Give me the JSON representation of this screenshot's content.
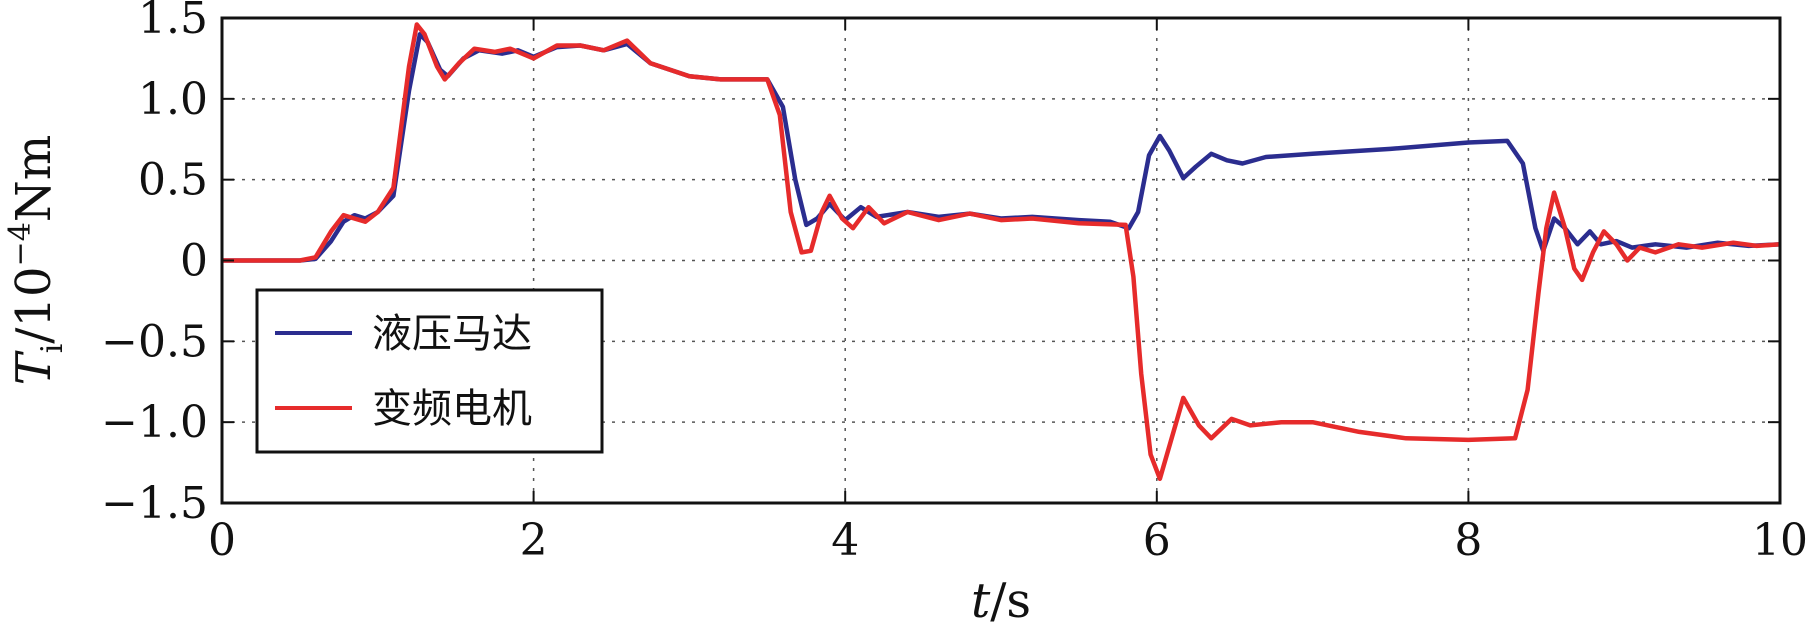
{
  "chart_data": {
    "type": "line",
    "xlabel": {
      "italic": "t",
      "rest": "/s"
    },
    "ylabel": {
      "italic": "T",
      "sub": "i",
      "rest": "/10",
      "sup": "−4",
      "unit": "Nm"
    },
    "xlim": [
      0,
      10
    ],
    "ylim": [
      -1.5,
      1.5
    ],
    "xticks": [
      0,
      2,
      4,
      6,
      8,
      10
    ],
    "xtick_labels": [
      "0",
      "2",
      "4",
      "6",
      "8",
      "10"
    ],
    "yticks": [
      1.5,
      1.0,
      0.5,
      0,
      -0.5,
      -1.0,
      -1.5
    ],
    "ytick_labels": [
      "1.5",
      "1.0",
      "0.5",
      "0",
      "−0.5",
      "−1.0",
      "−1.5"
    ],
    "grid": true,
    "legend_position": "lower-left",
    "series": [
      {
        "name": "液压马达",
        "color": "#2b2d8f",
        "points": [
          [
            0,
            0
          ],
          [
            0.5,
            0
          ],
          [
            0.6,
            0.01
          ],
          [
            0.7,
            0.12
          ],
          [
            0.78,
            0.24
          ],
          [
            0.85,
            0.28
          ],
          [
            0.92,
            0.26
          ],
          [
            1.0,
            0.3
          ],
          [
            1.1,
            0.4
          ],
          [
            1.2,
            1.05
          ],
          [
            1.27,
            1.4
          ],
          [
            1.32,
            1.35
          ],
          [
            1.4,
            1.18
          ],
          [
            1.45,
            1.14
          ],
          [
            1.55,
            1.25
          ],
          [
            1.65,
            1.3
          ],
          [
            1.8,
            1.28
          ],
          [
            1.9,
            1.3
          ],
          [
            2.0,
            1.26
          ],
          [
            2.15,
            1.32
          ],
          [
            2.3,
            1.33
          ],
          [
            2.45,
            1.3
          ],
          [
            2.6,
            1.34
          ],
          [
            2.75,
            1.22
          ],
          [
            3.0,
            1.14
          ],
          [
            3.2,
            1.12
          ],
          [
            3.5,
            1.12
          ],
          [
            3.6,
            0.95
          ],
          [
            3.68,
            0.5
          ],
          [
            3.75,
            0.22
          ],
          [
            3.82,
            0.26
          ],
          [
            3.9,
            0.35
          ],
          [
            4.0,
            0.25
          ],
          [
            4.1,
            0.33
          ],
          [
            4.2,
            0.27
          ],
          [
            4.4,
            0.3
          ],
          [
            4.6,
            0.27
          ],
          [
            4.8,
            0.29
          ],
          [
            5.0,
            0.26
          ],
          [
            5.2,
            0.27
          ],
          [
            5.5,
            0.25
          ],
          [
            5.7,
            0.24
          ],
          [
            5.82,
            0.2
          ],
          [
            5.88,
            0.3
          ],
          [
            5.95,
            0.65
          ],
          [
            6.02,
            0.77
          ],
          [
            6.08,
            0.68
          ],
          [
            6.17,
            0.51
          ],
          [
            6.25,
            0.58
          ],
          [
            6.35,
            0.66
          ],
          [
            6.45,
            0.62
          ],
          [
            6.55,
            0.6
          ],
          [
            6.7,
            0.64
          ],
          [
            7.0,
            0.66
          ],
          [
            7.5,
            0.69
          ],
          [
            8.0,
            0.73
          ],
          [
            8.25,
            0.74
          ],
          [
            8.35,
            0.6
          ],
          [
            8.43,
            0.2
          ],
          [
            8.48,
            0.06
          ],
          [
            8.55,
            0.26
          ],
          [
            8.62,
            0.2
          ],
          [
            8.7,
            0.1
          ],
          [
            8.78,
            0.18
          ],
          [
            8.85,
            0.1
          ],
          [
            8.95,
            0.12
          ],
          [
            9.05,
            0.08
          ],
          [
            9.2,
            0.1
          ],
          [
            9.4,
            0.08
          ],
          [
            9.6,
            0.11
          ],
          [
            9.8,
            0.09
          ],
          [
            10.0,
            0.1
          ]
        ]
      },
      {
        "name": "变频电机",
        "color": "#e62b2b",
        "points": [
          [
            0,
            0
          ],
          [
            0.5,
            0
          ],
          [
            0.6,
            0.02
          ],
          [
            0.7,
            0.18
          ],
          [
            0.78,
            0.28
          ],
          [
            0.85,
            0.26
          ],
          [
            0.92,
            0.24
          ],
          [
            1.0,
            0.3
          ],
          [
            1.1,
            0.45
          ],
          [
            1.2,
            1.2
          ],
          [
            1.25,
            1.46
          ],
          [
            1.3,
            1.4
          ],
          [
            1.38,
            1.2
          ],
          [
            1.43,
            1.12
          ],
          [
            1.52,
            1.22
          ],
          [
            1.62,
            1.31
          ],
          [
            1.75,
            1.29
          ],
          [
            1.85,
            1.31
          ],
          [
            2.0,
            1.25
          ],
          [
            2.15,
            1.33
          ],
          [
            2.3,
            1.33
          ],
          [
            2.45,
            1.3
          ],
          [
            2.6,
            1.36
          ],
          [
            2.75,
            1.22
          ],
          [
            3.0,
            1.14
          ],
          [
            3.2,
            1.12
          ],
          [
            3.5,
            1.12
          ],
          [
            3.58,
            0.9
          ],
          [
            3.65,
            0.3
          ],
          [
            3.72,
            0.05
          ],
          [
            3.78,
            0.06
          ],
          [
            3.85,
            0.3
          ],
          [
            3.9,
            0.4
          ],
          [
            3.98,
            0.26
          ],
          [
            4.05,
            0.2
          ],
          [
            4.15,
            0.33
          ],
          [
            4.25,
            0.23
          ],
          [
            4.4,
            0.3
          ],
          [
            4.6,
            0.25
          ],
          [
            4.8,
            0.29
          ],
          [
            5.0,
            0.25
          ],
          [
            5.2,
            0.26
          ],
          [
            5.5,
            0.23
          ],
          [
            5.8,
            0.22
          ],
          [
            5.85,
            -0.1
          ],
          [
            5.9,
            -0.7
          ],
          [
            5.96,
            -1.2
          ],
          [
            6.02,
            -1.35
          ],
          [
            6.08,
            -1.15
          ],
          [
            6.17,
            -0.85
          ],
          [
            6.27,
            -1.02
          ],
          [
            6.35,
            -1.1
          ],
          [
            6.48,
            -0.98
          ],
          [
            6.6,
            -1.02
          ],
          [
            6.8,
            -1.0
          ],
          [
            7.0,
            -1.0
          ],
          [
            7.3,
            -1.06
          ],
          [
            7.6,
            -1.1
          ],
          [
            8.0,
            -1.11
          ],
          [
            8.3,
            -1.1
          ],
          [
            8.38,
            -0.8
          ],
          [
            8.45,
            -0.2
          ],
          [
            8.5,
            0.2
          ],
          [
            8.55,
            0.42
          ],
          [
            8.62,
            0.2
          ],
          [
            8.68,
            -0.05
          ],
          [
            8.73,
            -0.12
          ],
          [
            8.8,
            0.05
          ],
          [
            8.87,
            0.18
          ],
          [
            8.95,
            0.1
          ],
          [
            9.02,
            0.0
          ],
          [
            9.1,
            0.08
          ],
          [
            9.2,
            0.05
          ],
          [
            9.35,
            0.1
          ],
          [
            9.5,
            0.08
          ],
          [
            9.7,
            0.11
          ],
          [
            9.85,
            0.09
          ],
          [
            10.0,
            0.1
          ]
        ]
      }
    ]
  }
}
